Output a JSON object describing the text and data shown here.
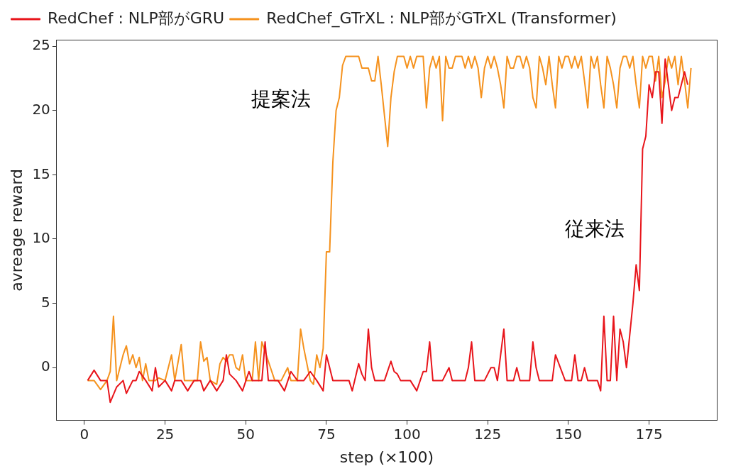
{
  "chart_data": {
    "type": "line",
    "xlabel": "step (×100)",
    "ylabel": "avreage reward",
    "xlim": [
      -8.6,
      196
    ],
    "xticks": [
      0,
      25,
      50,
      75,
      100,
      125,
      150,
      175
    ],
    "ylim": [
      -4.1,
      25.5
    ],
    "yticks": [
      0,
      5,
      10,
      15,
      20,
      25
    ],
    "grid": false,
    "legend": "top",
    "marker": "none",
    "line_style": "solid",
    "annotations": [
      "提案法",
      "従来法"
    ],
    "series": [
      {
        "name": "RedChef : NLP部がGRU",
        "color": "#e8151b",
        "x": [
          1,
          3,
          5,
          7,
          8,
          10,
          12,
          13,
          15,
          16,
          17,
          19,
          21,
          22,
          23,
          25,
          27,
          28,
          30,
          32,
          34,
          36,
          37,
          39,
          41,
          43,
          44,
          45,
          47,
          49,
          51,
          52,
          55,
          56,
          57,
          60,
          62,
          64,
          66,
          68,
          70,
          72,
          74,
          75,
          76,
          77,
          80,
          82,
          83,
          85,
          86,
          87,
          88,
          89,
          90,
          93,
          95,
          96,
          97,
          98,
          101,
          103,
          105,
          106,
          107,
          108,
          111,
          113,
          114,
          116,
          118,
          119,
          120,
          121,
          124,
          126,
          127,
          128,
          130,
          131,
          133,
          134,
          135,
          138,
          139,
          140,
          141,
          143,
          145,
          146,
          149,
          151,
          152,
          153,
          154,
          155,
          156,
          158,
          159,
          160,
          161,
          162,
          163,
          164,
          165,
          166,
          167,
          168,
          170,
          171,
          172,
          173,
          174,
          175,
          176,
          177,
          178,
          179,
          180,
          181,
          182,
          183,
          184,
          185,
          186,
          187
        ],
        "values": [
          -1,
          -0.2,
          -1,
          -1,
          -2.7,
          -1.5,
          -1,
          -2,
          -1,
          -1,
          -0.3,
          -1,
          -1.8,
          0,
          -1.5,
          -1,
          -1.8,
          -1,
          -1,
          -1.8,
          -1,
          -1,
          -1.8,
          -1,
          -1.8,
          -1,
          1,
          -0.5,
          -1,
          -1.8,
          -0.3,
          -1,
          -1,
          2,
          -1,
          -1,
          -1.8,
          -0.3,
          -1,
          -1,
          -0.3,
          -1,
          -1.8,
          1,
          0,
          -1,
          -1,
          -1,
          -1.8,
          0.3,
          -0.5,
          -1,
          3,
          0,
          -1,
          -1,
          0.5,
          -0.3,
          -0.5,
          -1,
          -1,
          -1.8,
          -0.3,
          -0.3,
          2,
          -1,
          -1,
          0,
          -1,
          -1,
          -1,
          0,
          2,
          -1,
          -1,
          0,
          0,
          -1,
          3,
          -1,
          -1,
          0,
          -1,
          -1,
          2,
          0,
          -1,
          -1,
          -1,
          1,
          -1,
          -1,
          1,
          -1,
          -1,
          0,
          -1,
          -1,
          -1,
          -1.8,
          4,
          -1,
          -1,
          4,
          -1,
          3,
          2,
          0,
          5,
          8,
          6,
          17,
          18,
          22,
          21,
          23,
          23,
          19,
          24,
          22,
          20,
          21,
          21,
          22,
          23,
          22
        ]
      },
      {
        "name": "RedChef_GTrXL : NLP部がGTrXL (Transformer)",
        "color": "#f5921e",
        "x": [
          1,
          3,
          5,
          7,
          8,
          9,
          10,
          12,
          13,
          14,
          15,
          16,
          17,
          18,
          19,
          20,
          22,
          23,
          25,
          27,
          28,
          30,
          31,
          33,
          35,
          36,
          37,
          38,
          39,
          41,
          42,
          43,
          44,
          45,
          46,
          47,
          48,
          49,
          50,
          52,
          53,
          54,
          55,
          57,
          59,
          61,
          63,
          64,
          66,
          67,
          68,
          70,
          71,
          72,
          73,
          74,
          75,
          76,
          77,
          78,
          79,
          80,
          81,
          85,
          86,
          88,
          89,
          90,
          91,
          92,
          94,
          95,
          96,
          97,
          99,
          100,
          101,
          102,
          103,
          105,
          106,
          107,
          108,
          109,
          110,
          111,
          112,
          113,
          114,
          115,
          117,
          118,
          119,
          120,
          121,
          122,
          123,
          124,
          125,
          126,
          127,
          128,
          129,
          130,
          131,
          132,
          133,
          134,
          135,
          136,
          137,
          138,
          139,
          140,
          141,
          142,
          143,
          144,
          145,
          146,
          147,
          148,
          149,
          150,
          151,
          152,
          153,
          154,
          155,
          156,
          157,
          158,
          159,
          160,
          161,
          162,
          163,
          164,
          165,
          166,
          167,
          168,
          169,
          170,
          171,
          172,
          173,
          174,
          175,
          176,
          177,
          178,
          179,
          180,
          181,
          182,
          183,
          184,
          185,
          186,
          187,
          188
        ],
        "values": [
          -1,
          -1,
          -1.7,
          -1,
          -0.3,
          4,
          -1,
          1,
          1.7,
          0.3,
          1,
          0,
          0.8,
          -1,
          0.3,
          -1,
          -1,
          -0.8,
          -1,
          1,
          -1,
          1.8,
          -1,
          -1,
          -1,
          2,
          0.5,
          0.8,
          -1,
          -1.3,
          0.3,
          0.8,
          0.5,
          1,
          1,
          0,
          -0.2,
          1,
          -1,
          -1,
          2,
          -1,
          2,
          0.5,
          -1,
          -1,
          0,
          -1,
          -1,
          3,
          1.5,
          -1,
          -1.3,
          1,
          0,
          1.5,
          9,
          9,
          16,
          20,
          21,
          23.5,
          24.2,
          24.2,
          23.3,
          23.3,
          22.3,
          22.3,
          24.2,
          22,
          17.2,
          21,
          23,
          24.2,
          24.2,
          23.3,
          24.2,
          23.3,
          24.2,
          24.2,
          20.2,
          23.3,
          24.2,
          23.3,
          24.2,
          19.2,
          24.2,
          23.3,
          23.3,
          24.2,
          24.2,
          23.3,
          24.2,
          23.3,
          24.2,
          23.3,
          21,
          23.3,
          24.2,
          23.3,
          24.2,
          23.3,
          22,
          20.2,
          24.2,
          23.3,
          23.3,
          24.2,
          24.2,
          23.3,
          24.2,
          23.3,
          21,
          20.2,
          24.2,
          23.3,
          22,
          24.2,
          22,
          20.2,
          24.2,
          23.3,
          24.2,
          24.2,
          23.3,
          24.2,
          23.3,
          24.2,
          22.3,
          20.2,
          24.2,
          23.3,
          24.2,
          22,
          20.2,
          24.2,
          23.3,
          22,
          20.2,
          23.3,
          24.2,
          24.2,
          23.3,
          24.2,
          22,
          20.2,
          24.2,
          23.3,
          24.2,
          24.2,
          22.3,
          24.2,
          21,
          22.3,
          24.2,
          23.3,
          24.2,
          22,
          24.2,
          22.3,
          20.2,
          23.3
        ]
      }
    ]
  }
}
